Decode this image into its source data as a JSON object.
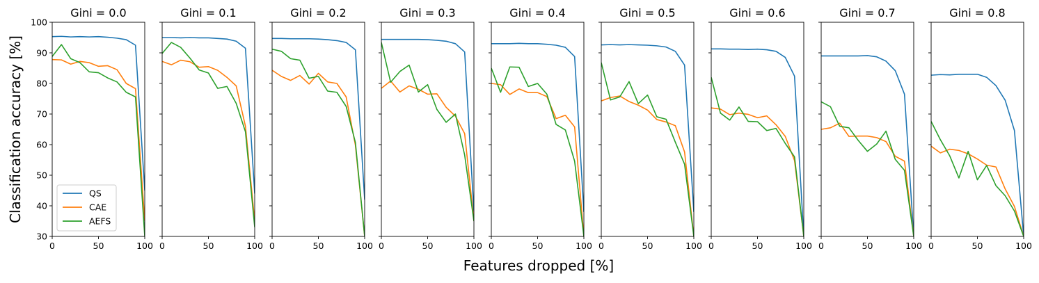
{
  "chart_data": {
    "type": "line",
    "xlabel": "Features dropped [%]",
    "ylabel": "Classification accuracy [%]",
    "xlim": [
      0,
      100
    ],
    "ylim": [
      30,
      100
    ],
    "x_ticks": [
      "0",
      "50",
      "100"
    ],
    "y_ticks": [
      "30",
      "40",
      "50",
      "60",
      "70",
      "80",
      "90",
      "100"
    ],
    "legend": {
      "placement": "lower-left",
      "panel": 0
    },
    "grid": false,
    "x": [
      0,
      10,
      20,
      30,
      40,
      50,
      60,
      70,
      80,
      90,
      100
    ],
    "series_colors": {
      "QS": "#1f77b4",
      "CAE": "#ff7f0e",
      "AEFS": "#2ca02c"
    },
    "panels": [
      {
        "title": "Gini = 0.0",
        "series": [
          {
            "name": "QS",
            "values": [
              95.3,
              95.4,
              95.2,
              95.3,
              95.2,
              95.3,
              95.1,
              94.8,
              94.3,
              92.5,
              45
            ]
          },
          {
            "name": "CAE",
            "values": [
              87.8,
              87.7,
              86.3,
              87.2,
              86.8,
              85.6,
              85.8,
              84.5,
              80,
              78.3,
              35
            ]
          },
          {
            "name": "AEFS",
            "values": [
              88.8,
              92.7,
              88.1,
              86.8,
              83.8,
              83.5,
              81.8,
              80.5,
              77.1,
              75.6,
              30
            ]
          }
        ]
      },
      {
        "title": "Gini = 0.1",
        "series": [
          {
            "name": "QS",
            "values": [
              95,
              95,
              94.9,
              95,
              94.9,
              94.9,
              94.7,
              94.5,
              93.8,
              91.5,
              44
            ]
          },
          {
            "name": "CAE",
            "values": [
              87.2,
              86.1,
              87.6,
              87.1,
              85.3,
              85.5,
              84.3,
              82,
              79.2,
              66,
              35
            ]
          },
          {
            "name": "AEFS",
            "values": [
              89.8,
              93.4,
              91.8,
              88.3,
              84.4,
              83.4,
              78.4,
              79,
              73.5,
              64.2,
              33
            ]
          }
        ]
      },
      {
        "title": "Gini = 0.2",
        "series": [
          {
            "name": "QS",
            "values": [
              94.7,
              94.7,
              94.6,
              94.6,
              94.6,
              94.5,
              94.3,
              94,
              93.4,
              91,
              42
            ]
          },
          {
            "name": "CAE",
            "values": [
              84.3,
              82.3,
              81,
              82.6,
              79.8,
              83.3,
              80.5,
              80,
              75.6,
              59.8,
              30
            ]
          },
          {
            "name": "AEFS",
            "values": [
              91.2,
              90.5,
              88.1,
              87.6,
              81.7,
              82.3,
              77.5,
              77.1,
              72.5,
              60.7,
              30
            ]
          }
        ]
      },
      {
        "title": "Gini = 0.3",
        "series": [
          {
            "name": "QS",
            "values": [
              94.4,
              94.4,
              94.4,
              94.4,
              94.4,
              94.3,
              94.1,
              93.8,
              93,
              90.3,
              38
            ]
          },
          {
            "name": "CAE",
            "values": [
              78.4,
              80.8,
              77.2,
              79.2,
              78.1,
              76.5,
              76.6,
              72.2,
              69.3,
              63.6,
              35
            ]
          },
          {
            "name": "AEFS",
            "values": [
              93.4,
              80.4,
              83.9,
              86,
              77.2,
              79.6,
              71.5,
              67.3,
              70,
              56.6,
              35
            ]
          }
        ]
      },
      {
        "title": "Gini = 0.4",
        "series": [
          {
            "name": "QS",
            "values": [
              93,
              93,
              93,
              93.1,
              93,
              93,
              92.8,
              92.5,
              91.8,
              88.8,
              38
            ]
          },
          {
            "name": "CAE",
            "values": [
              80,
              79.6,
              76.4,
              78.2,
              77,
              77,
              75.7,
              68.5,
              69.6,
              65.8,
              30
            ]
          },
          {
            "name": "AEFS",
            "values": [
              85,
              77.1,
              85.4,
              85.3,
              79,
              80,
              76.5,
              66.6,
              64.8,
              54.6,
              30
            ]
          }
        ]
      },
      {
        "title": "Gini = 0.5",
        "series": [
          {
            "name": "QS",
            "values": [
              92.6,
              92.7,
              92.6,
              92.7,
              92.6,
              92.5,
              92.3,
              91.9,
              90.5,
              86,
              38
            ]
          },
          {
            "name": "CAE",
            "values": [
              74.3,
              75.4,
              75.9,
              74.1,
              72.9,
              71.3,
              68.2,
              67.4,
              66.2,
              57.6,
              30
            ]
          },
          {
            "name": "AEFS",
            "values": [
              86.8,
              74.6,
              75.6,
              80.6,
              73.4,
              76.2,
              69.1,
              68.3,
              60.8,
              53.6,
              30
            ]
          }
        ]
      },
      {
        "title": "Gini = 0.6",
        "series": [
          {
            "name": "QS",
            "values": [
              91.3,
              91.3,
              91.2,
              91.2,
              91.1,
              91.2,
              91,
              90.5,
              88.5,
              82.4,
              30
            ]
          },
          {
            "name": "CAE",
            "values": [
              72,
              71.6,
              69.8,
              70.3,
              69.9,
              68.8,
              69.4,
              66.5,
              62.7,
              54.8,
              30
            ]
          },
          {
            "name": "AEFS",
            "values": [
              82,
              70.3,
              68,
              72.3,
              67.6,
              67.5,
              64.6,
              65.3,
              60.4,
              56,
              30
            ]
          }
        ]
      },
      {
        "title": "Gini = 0.7",
        "series": [
          {
            "name": "QS",
            "values": [
              89,
              89,
              89,
              89,
              89,
              89.1,
              88.7,
              87.3,
              84.2,
              76.5,
              30
            ]
          },
          {
            "name": "CAE",
            "values": [
              65,
              65.5,
              67,
              62.7,
              62.8,
              62.8,
              62.3,
              61,
              56.2,
              54.6,
              30
            ]
          },
          {
            "name": "AEFS",
            "values": [
              74,
              72.4,
              66,
              65.5,
              61.4,
              57.8,
              60.2,
              64.4,
              55.2,
              51.6,
              30
            ]
          }
        ]
      },
      {
        "title": "Gini = 0.8",
        "series": [
          {
            "name": "QS",
            "values": [
              82.7,
              82.9,
              82.8,
              83,
              83,
              83,
              82,
              79.3,
              74.5,
              64.6,
              30
            ]
          },
          {
            "name": "CAE",
            "values": [
              59.5,
              57.3,
              58.5,
              58.1,
              57,
              55.3,
              53.3,
              52.7,
              45.5,
              39.8,
              30
            ]
          },
          {
            "name": "AEFS",
            "values": [
              67.6,
              61.6,
              56.4,
              49.1,
              57.8,
              48.5,
              53.2,
              46.6,
              43.3,
              38.3,
              30
            ]
          }
        ]
      }
    ]
  }
}
